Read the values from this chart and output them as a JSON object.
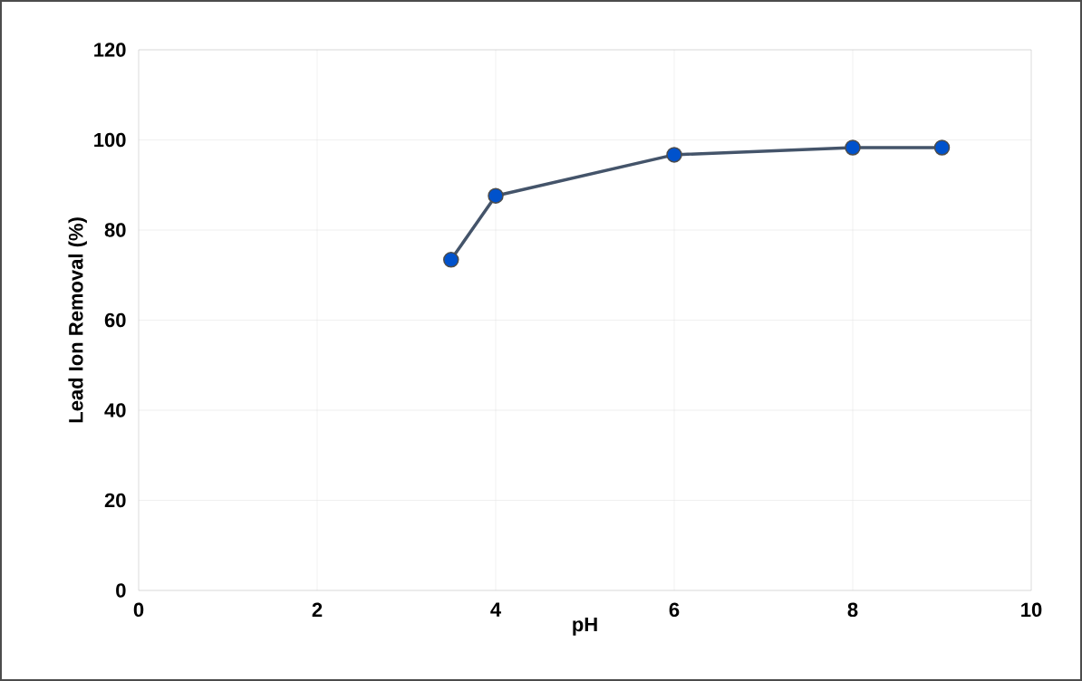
{
  "chart_data": {
    "type": "line",
    "xlabel": "pH",
    "ylabel": "Lead Ion Removal (%)",
    "x": [
      3.5,
      4,
      6,
      8,
      9
    ],
    "series": [
      {
        "color": "#44546a",
        "values": [
          73.4,
          87.6,
          96.7,
          98.3,
          98.3
        ]
      }
    ],
    "xlim": [
      0,
      10
    ],
    "xticks": [
      0,
      2,
      4,
      6,
      8,
      10
    ],
    "ylim": [
      0,
      120
    ],
    "yticks": [
      0,
      20,
      40,
      60,
      80,
      100,
      120
    ],
    "grid": true,
    "marker": "circle",
    "line_style": "solid"
  }
}
